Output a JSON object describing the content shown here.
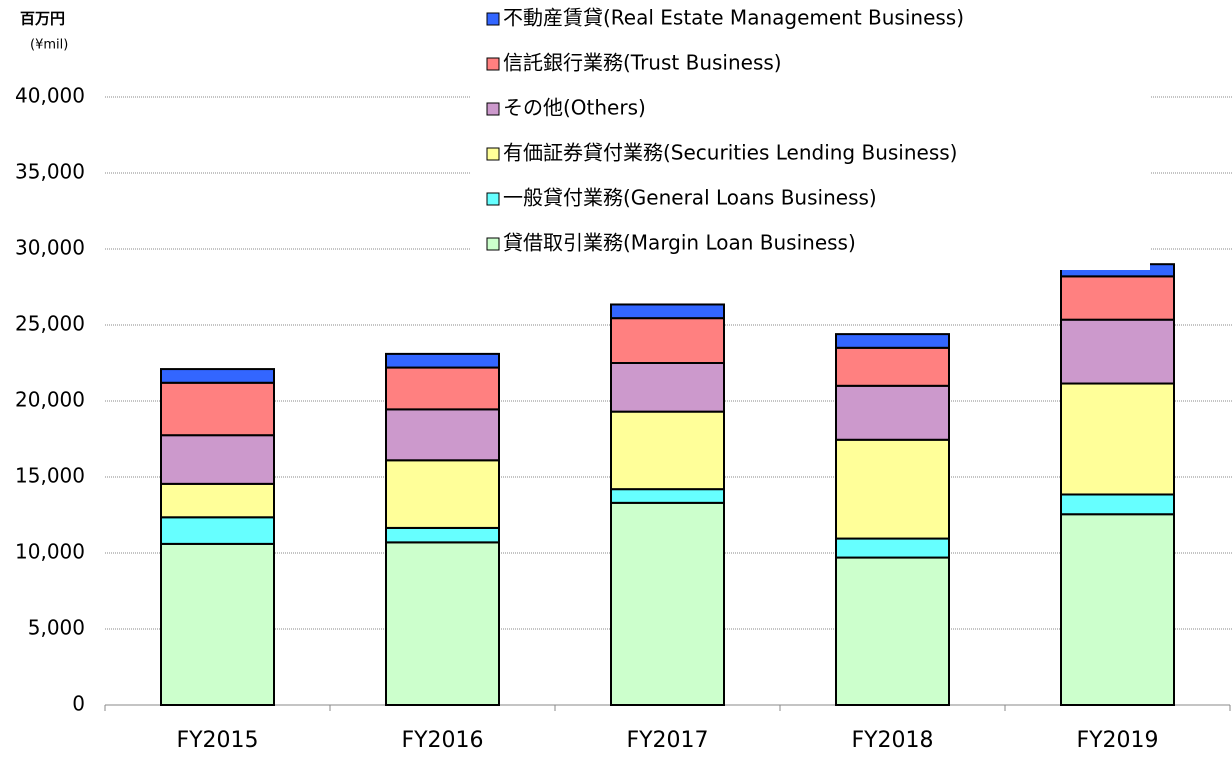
{
  "chart_data": {
    "type": "stacked_bar",
    "unit_label": "百万円",
    "unit_sublabel": "(¥mil)",
    "categories": [
      "FY2015",
      "FY2016",
      "FY2017",
      "FY2018",
      "FY2019"
    ],
    "series": [
      {
        "name": "貸借取引業務(Margin Loan Business)",
        "color": "#ccffcc",
        "values": [
          10600,
          10700,
          13300,
          9700,
          12550
        ]
      },
      {
        "name": "一般貸付業務(General Loans Business)",
        "color": "#66ffff",
        "values": [
          1750,
          950,
          900,
          1250,
          1300
        ]
      },
      {
        "name": "有価証券貸付業務(Securities Lending Business)",
        "color": "#ffff99",
        "values": [
          2200,
          4450,
          5100,
          6500,
          7300
        ]
      },
      {
        "name": "その他(Others)",
        "color": "#cc99cc",
        "values": [
          3200,
          3350,
          3200,
          3550,
          4200
        ]
      },
      {
        "name": "信託銀行業務(Trust Business)",
        "color": "#ff8080",
        "values": [
          3450,
          2750,
          2950,
          2500,
          2850
        ]
      },
      {
        "name": "不動産賃貸(Real Estate Management Business)",
        "color": "#3366ff",
        "values": [
          900,
          900,
          900,
          900,
          800
        ]
      }
    ],
    "ylim": [
      0,
      40000
    ],
    "yticks": [
      0,
      {
        "value": 5000,
        "label": "5,000"
      },
      {
        "value": 10000,
        "label": "10,000"
      },
      {
        "value": 15000,
        "label": "15,000"
      },
      {
        "value": 20000,
        "label": "20,000"
      },
      {
        "value": 25000,
        "label": "25,000"
      },
      {
        "value": 30000,
        "label": "30,000"
      },
      {
        "value": 35000,
        "label": "35,000"
      },
      {
        "value": 40000,
        "label": "40,000"
      }
    ],
    "grid": true,
    "legend": "top"
  }
}
